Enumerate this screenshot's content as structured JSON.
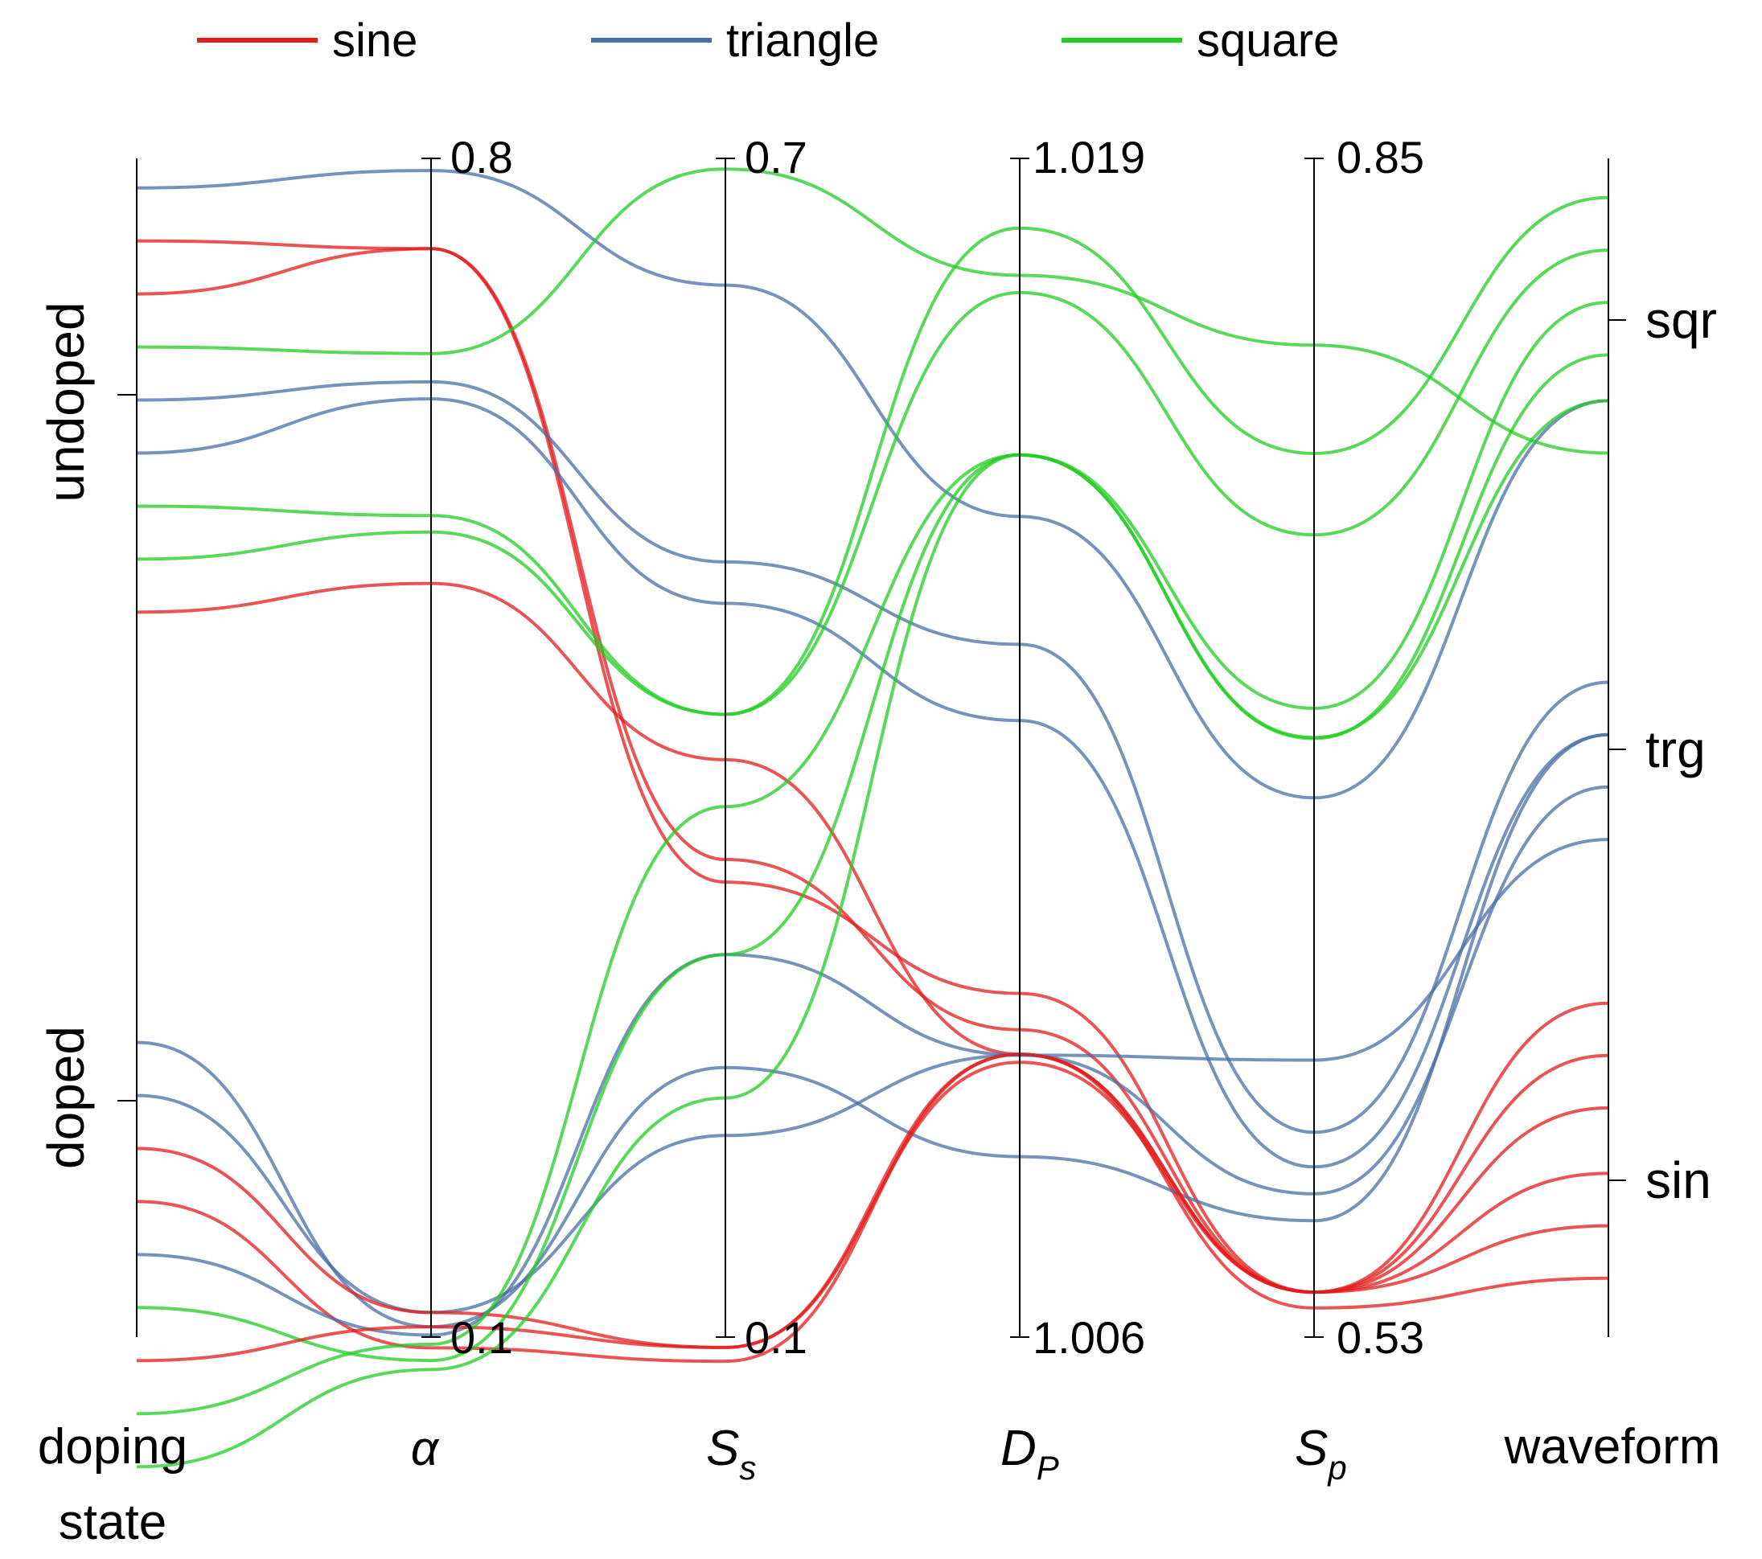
{
  "chart_data": {
    "type": "parallel-coordinates",
    "title": "",
    "colors": {
      "sine": "#e41b1b",
      "triangle": "#4a6fa5",
      "square": "#22cc22"
    },
    "legend": [
      {
        "name": "sine",
        "color": "#e41b1b"
      },
      {
        "name": "triangle",
        "color": "#4a6fa5"
      },
      {
        "name": "square",
        "color": "#22cc22"
      }
    ],
    "axes": [
      {
        "key": "doping_state",
        "label": "doping state",
        "label_line1": "doping",
        "label_line2": "state",
        "kind": "categorical",
        "categories": [
          "doped",
          "undoped"
        ]
      },
      {
        "key": "alpha",
        "label": "α",
        "kind": "numeric",
        "min": 0.1,
        "max": 0.8,
        "min_label": "0.1",
        "max_label": "0.8"
      },
      {
        "key": "Ss",
        "label": "S",
        "sub": "s",
        "kind": "numeric",
        "min": 0.1,
        "max": 0.7,
        "min_label": "0.1",
        "max_label": "0.7"
      },
      {
        "key": "DP",
        "label": "D",
        "sub": "P",
        "kind": "numeric",
        "min": 1.006,
        "max": 1.019,
        "min_label": "1.006",
        "max_label": "1.019"
      },
      {
        "key": "Sp",
        "label": "S",
        "sub": "p",
        "kind": "numeric",
        "min": 0.53,
        "max": 0.85,
        "min_label": "0.53",
        "max_label": "0.85"
      },
      {
        "key": "waveform",
        "label": "waveform",
        "kind": "categorical",
        "categories": [
          "sin",
          "trg",
          "sqr"
        ]
      }
    ],
    "series": [
      {
        "group": "triangle",
        "values": [
          0.975,
          0.7928,
          0.6355,
          1.01505,
          0.6764,
          0.7944
        ]
      },
      {
        "group": "sine",
        "values": [
          0.93,
          0.7464,
          0.3316,
          1.00979,
          0.5422,
          0.1944
        ]
      },
      {
        "group": "sine",
        "values": [
          0.885,
          0.7464,
          0.3431,
          1.00939,
          0.5422,
          0.1389
        ]
      },
      {
        "group": "square",
        "values": [
          0.84,
          0.6841,
          0.6946,
          1.01771,
          0.7993,
          0.75
        ]
      },
      {
        "group": "triangle",
        "values": [
          0.795,
          0.6673,
          0.4946,
          1.01364,
          0.5856,
          0.5556
        ]
      },
      {
        "group": "triangle",
        "values": [
          0.75,
          0.6572,
          0.4735,
          1.0128,
          0.5762,
          0.5111
        ]
      },
      {
        "group": "square",
        "values": [
          0.705,
          0.5879,
          0.417,
          1.01823,
          0.7699,
          0.9667
        ]
      },
      {
        "group": "square",
        "values": [
          0.66,
          0.5781,
          0.417,
          1.01752,
          0.7478,
          0.9222
        ]
      },
      {
        "group": "sine",
        "values": [
          0.615,
          0.5476,
          0.3939,
          1.00912,
          0.5379,
          0.05
        ]
      },
      {
        "group": "triangle",
        "values": [
          0.25,
          0.1061,
          0.2372,
          1.00799,
          0.5616,
          0.5111
        ]
      },
      {
        "group": "triangle",
        "values": [
          0.205,
          0.1146,
          0.2026,
          1.00911,
          0.5689,
          0.4667
        ]
      },
      {
        "group": "sine",
        "values": [
          0.16,
          0.1146,
          0.0947,
          1.00903,
          0.5422,
          0.2389
        ]
      },
      {
        "group": "sine",
        "values": [
          0.115,
          0.0936,
          0.0877,
          1.00912,
          0.5422,
          0.2833
        ]
      },
      {
        "group": "triangle",
        "values": [
          0.07,
          0.1012,
          0.2947,
          1.00911,
          0.6052,
          0.4222
        ]
      },
      {
        "group": "square",
        "values": [
          0.025,
          0.0861,
          0.2947,
          1.01573,
          0.6925,
          0.8333
        ]
      },
      {
        "group": "sine",
        "values": [
          -0.02,
          0.1061,
          0.0947,
          1.00912,
          0.5422,
          0.0944
        ]
      },
      {
        "group": "square",
        "values": [
          -0.065,
          0.0957,
          0.37,
          1.01573,
          0.7007,
          0.8778
        ]
      },
      {
        "group": "square",
        "values": [
          -0.11,
          0.0807,
          0.2217,
          1.01573,
          0.6928,
          0.7944
        ]
      }
    ]
  }
}
